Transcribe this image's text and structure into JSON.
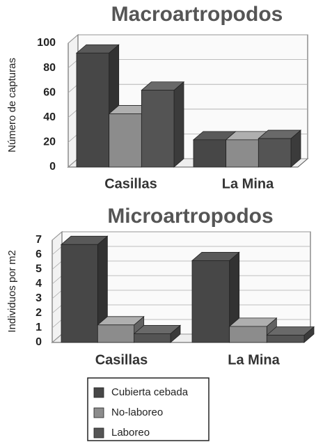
{
  "chart_data": [
    {
      "type": "bar",
      "title": "Macroartropodos",
      "y_label": "Número de capturas",
      "categories": [
        "Casillas",
        "La Mina"
      ],
      "series": [
        {
          "name": "Cubierta cebada",
          "color": "#474747",
          "values": [
            92,
            22
          ]
        },
        {
          "name": "No-laboreo",
          "color": "#8c8c8c",
          "values": [
            43,
            22
          ]
        },
        {
          "name": "Laboreo",
          "color": "#545454",
          "values": [
            62,
            23
          ]
        }
      ],
      "ylim": [
        0,
        100
      ],
      "yticks": [
        0,
        20,
        40,
        60,
        80,
        100
      ],
      "grid": true
    },
    {
      "type": "bar",
      "title": "Microartropodos",
      "y_label": "Individuos por m2",
      "categories": [
        "Casillas",
        "La Mina"
      ],
      "series": [
        {
          "color": "#474747",
          "values": [
            6.7,
            5.6
          ]
        },
        {
          "color": "#8c8c8c",
          "values": [
            1.2,
            1.1
          ]
        },
        {
          "color": "#545454",
          "values": [
            0.6,
            0.5
          ]
        }
      ],
      "ylim": [
        0,
        7
      ],
      "yticks": [
        0,
        1,
        2,
        3,
        4,
        5,
        6,
        7
      ],
      "grid": true
    }
  ]
}
